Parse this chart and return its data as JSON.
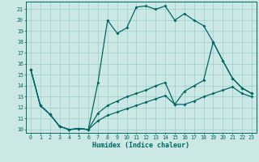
{
  "xlabel": "Humidex (Indice chaleur)",
  "bg_color": "#cce8e5",
  "grid_color": "#99ccca",
  "line_color": "#006666",
  "xlim": [
    -0.5,
    23.5
  ],
  "ylim": [
    9.7,
    21.7
  ],
  "xticks": [
    0,
    1,
    2,
    3,
    4,
    5,
    6,
    7,
    8,
    9,
    10,
    11,
    12,
    13,
    14,
    15,
    16,
    17,
    18,
    19,
    20,
    21,
    22,
    23
  ],
  "yticks": [
    10,
    11,
    12,
    13,
    14,
    15,
    16,
    17,
    18,
    19,
    20,
    21
  ],
  "series1_x": [
    0,
    1,
    2,
    3,
    4,
    5,
    6,
    7,
    8,
    9,
    10,
    11,
    12,
    13,
    14,
    15,
    16,
    17,
    18,
    19,
    20,
    21,
    22,
    23
  ],
  "series1_y": [
    15.5,
    12.2,
    11.4,
    10.3,
    10.0,
    10.1,
    10.0,
    14.3,
    20.0,
    18.8,
    19.3,
    21.2,
    21.3,
    21.0,
    21.3,
    20.0,
    20.6,
    20.0,
    19.5,
    18.0,
    16.3,
    14.7,
    13.8,
    13.3
  ],
  "series2_x": [
    0,
    1,
    2,
    3,
    4,
    5,
    6,
    7,
    8,
    9,
    10,
    11,
    12,
    13,
    14,
    15,
    16,
    17,
    18,
    19,
    20,
    21,
    22,
    23
  ],
  "series2_y": [
    15.5,
    12.2,
    11.4,
    10.3,
    10.0,
    10.1,
    10.0,
    11.5,
    12.2,
    12.6,
    13.0,
    13.3,
    13.6,
    14.0,
    14.3,
    12.3,
    13.5,
    14.0,
    14.5,
    18.0,
    16.3,
    14.7,
    13.8,
    13.3
  ],
  "series3_x": [
    0,
    1,
    2,
    3,
    4,
    5,
    6,
    7,
    8,
    9,
    10,
    11,
    12,
    13,
    14,
    15,
    16,
    17,
    18,
    19,
    20,
    21,
    22,
    23
  ],
  "series3_y": [
    15.5,
    12.2,
    11.4,
    10.3,
    10.0,
    10.1,
    10.0,
    10.8,
    11.3,
    11.6,
    11.9,
    12.2,
    12.5,
    12.8,
    13.1,
    12.3,
    12.3,
    12.6,
    13.0,
    13.3,
    13.6,
    13.9,
    13.3,
    13.0
  ]
}
